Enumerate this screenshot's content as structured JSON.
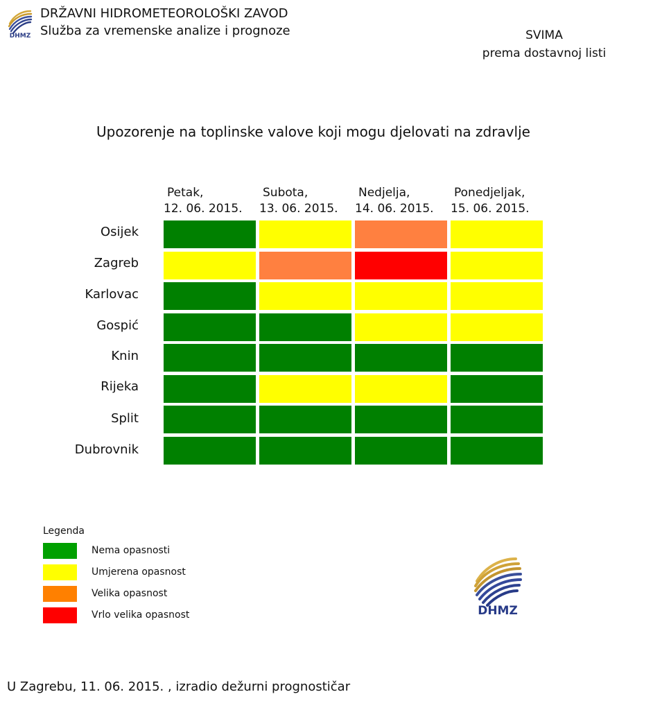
{
  "header": {
    "org_name": "DRŽAVNI HIDROMETEOROLOŠKI ZAVOD",
    "department": "Služba za vremenske analize i prognoze",
    "logo_text": "DHMZ",
    "recipient_line1": "SVIMA",
    "recipient_line2": "prema dostavnoj listi"
  },
  "title": "Upozorenje na toplinske valove koji mogu djelovati na zdravlje",
  "days": [
    {
      "name": "Petak,",
      "date": "12. 06. 2015."
    },
    {
      "name": "Subota,",
      "date": "13. 06. 2015."
    },
    {
      "name": "Nedjelja,",
      "date": "14. 06. 2015."
    },
    {
      "name": "Ponedjeljak,",
      "date": "15. 06. 2015."
    }
  ],
  "cities": [
    {
      "name": "Osijek",
      "levels": [
        "none",
        "moderate",
        "high",
        "moderate"
      ]
    },
    {
      "name": "Zagreb",
      "levels": [
        "moderate",
        "high",
        "very_high",
        "moderate"
      ]
    },
    {
      "name": "Karlovac",
      "levels": [
        "none",
        "moderate",
        "moderate",
        "moderate"
      ]
    },
    {
      "name": "Gospić",
      "levels": [
        "none",
        "none",
        "moderate",
        "moderate"
      ]
    },
    {
      "name": "Knin",
      "levels": [
        "none",
        "none",
        "none",
        "none"
      ]
    },
    {
      "name": "Rijeka",
      "levels": [
        "none",
        "moderate",
        "moderate",
        "none"
      ]
    },
    {
      "name": "Split",
      "levels": [
        "none",
        "none",
        "none",
        "none"
      ]
    },
    {
      "name": "Dubrovnik",
      "levels": [
        "none",
        "none",
        "none",
        "none"
      ]
    }
  ],
  "level_colors": {
    "none": "#008000",
    "moderate": "#ffff00",
    "high": "#ff8040",
    "very_high": "#ff0000"
  },
  "legend": {
    "title": "Legenda",
    "items": [
      {
        "label": "Nema opasnosti",
        "color": "#00a000"
      },
      {
        "label": "Umjerena opasnost",
        "color": "#ffff00"
      },
      {
        "label": "Velika opasnost",
        "color": "#ff8000"
      },
      {
        "label": "Vrlo velika opasnost",
        "color": "#ff0000"
      }
    ]
  },
  "logo_large_text": "DHMZ",
  "footer": "U Zagrebu, 11. 06. 2015.  , izradio dežurni prognostičar"
}
